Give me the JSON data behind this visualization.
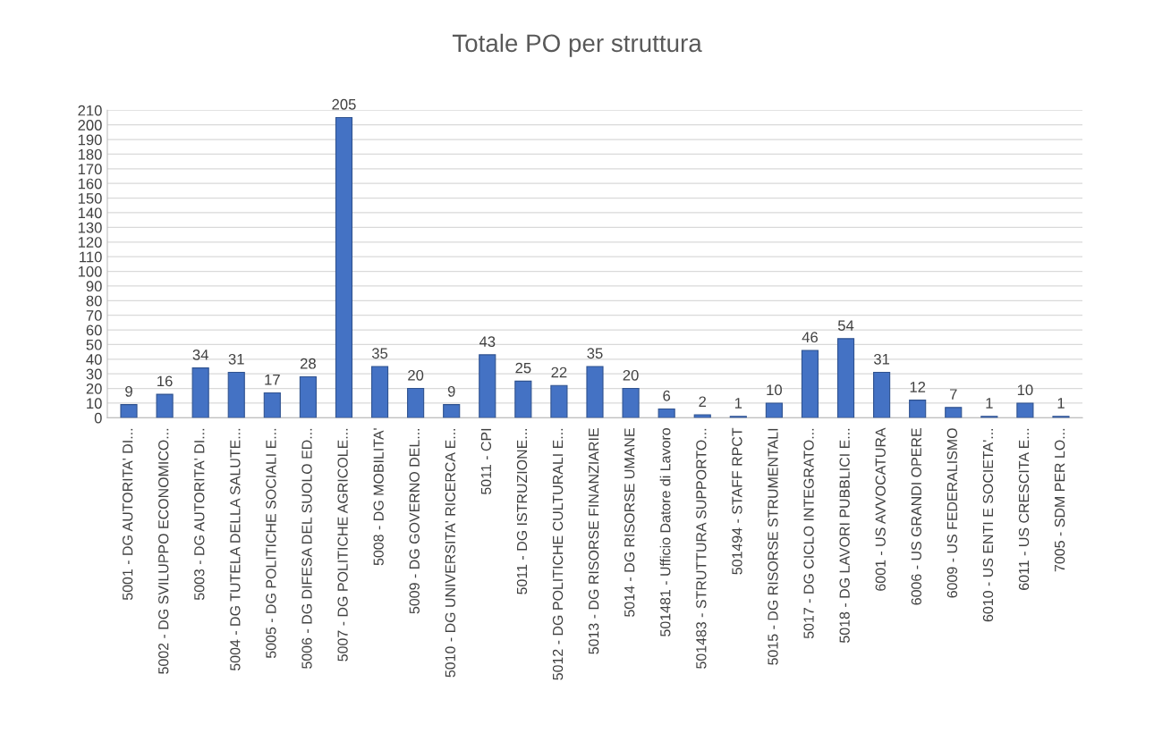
{
  "chart_data": {
    "type": "bar",
    "title": "Totale PO per struttura",
    "categories": [
      "5001 - DG AUTORITA' DI...",
      "5002 - DG SVILUPPO ECONOMICO...",
      "5003 - DG AUTORITA' DI...",
      "5004 - DG TUTELA DELLA SALUTE...",
      "5005 - DG POLITICHE SOCIALI E...",
      "5006 - DG DIFESA DEL SUOLO ED...",
      "5007 - DG POLITICHE AGRICOLE...",
      "5008 - DG MOBILITA'",
      "5009 - DG GOVERNO DEL...",
      "5010 - DG UNIVERSITA' RICERCA E...",
      "5011 - CPI",
      "5011 - DG ISTRUZIONE...",
      "5012 - DG POLITICHE CULTURALI E...",
      "5013 - DG RISORSE FINANZIARIE",
      "5014 - DG RISORSE UMANE",
      "501481 - Ufficio Datore di Lavoro",
      "501483 - STRUTTURA SUPPORTO...",
      "501494 - STAFF RPCT",
      "5015 - DG RISORSE STRUMENTALI",
      "5017 - DG CICLO INTEGRATO...",
      "5018 - DG LAVORI PUBBLICI E...",
      "6001 - US AVVOCATURA",
      "6006 - US GRANDI OPERE",
      "6009 - US FEDERALISMO",
      "6010 - US ENTI E SOCIETA'...",
      "6011 - US CRESCITA E...",
      "7005 - SDM PER LO..."
    ],
    "values": [
      9,
      16,
      34,
      31,
      17,
      28,
      205,
      35,
      20,
      9,
      43,
      25,
      22,
      35,
      20,
      6,
      2,
      1,
      10,
      46,
      54,
      31,
      12,
      7,
      1,
      10,
      1
    ],
    "color": "#4472c4",
    "ylim": [
      0,
      210
    ],
    "yticks": [
      0,
      10,
      20,
      30,
      40,
      50,
      60,
      70,
      80,
      90,
      100,
      110,
      120,
      130,
      140,
      150,
      160,
      170,
      180,
      190,
      200,
      210
    ],
    "grid": "y",
    "data_labels": true
  }
}
